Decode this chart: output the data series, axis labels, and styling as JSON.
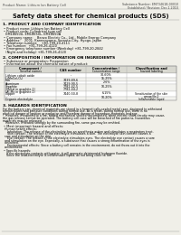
{
  "bg_color": "#f0efe8",
  "header_top_left": "Product Name: Lithium Ion Battery Cell",
  "header_top_right": "Substance Number: EM73461B-00010\nEstablished / Revision: Dec.1.2010",
  "main_title": "Safety data sheet for chemical products (SDS)",
  "section1_title": "1. PRODUCT AND COMPANY IDENTIFICATION",
  "section1_lines": [
    "• Product name: Lithium Ion Battery Cell",
    "• Product code: Cylindrical type cell",
    "  EM18650U, EM18650L, EM18650A",
    "• Company name:    Benzo Electric Co., Ltd., Mobile Energy Company",
    "• Address:    2001, Kannonyama, Sumoto-City, Hyogo, Japan",
    "• Telephone number:    +81-799-20-4111",
    "• Fax number:  +81-799-26-4120",
    "• Emergency telephone number (Weekday) +81-799-20-2842",
    "  (Night and holiday) +81-799-26-4120"
  ],
  "section2_title": "2. COMPOSITION / INFORMATION ON INGREDIENTS",
  "section2_intro": "• Substance or preparation: Preparation",
  "section2_sub": "• Information about the chemical nature of product:",
  "table_rows": [
    [
      "Lithium cobalt oxide\n(LiMnCo)₃O₂)",
      "-",
      "30-60%",
      ""
    ],
    [
      "Iron",
      "7439-89-6",
      "15-25%",
      ""
    ],
    [
      "Aluminum",
      "7429-90-5",
      "2-6%",
      ""
    ],
    [
      "Graphite\n(Metal in graphite-1)\n(Al-Mo in graphite-1)",
      "7782-42-5\n7782-44-2",
      "10-25%",
      ""
    ],
    [
      "Copper",
      "7440-50-8",
      "6-15%",
      "Sensitization of the skin\ngroup No.2"
    ],
    [
      "Organic electrolyte",
      "-",
      "10-20%",
      "Inflammable liquid"
    ]
  ],
  "section3_title": "3. HAZARDS IDENTIFICATION",
  "section3_lines": [
    "For the battery can, chemical materials are stored in a hermetically-sealed metal case, designed to withstand",
    "temperatures and pressure conditions during normal use. As a result, during normal use, there is no",
    "physical danger of ignition or explosion and therefore danger of hazardous materials leakage.",
    "   However, if exposed to a fire, added mechanical shocks, decomposed, when electric short-circuity may cause,",
    "the gas release cannot be operated. The battery cell case will be breached of fire patterns, hazardous",
    "materials may be released.",
    "   Moreover, if heated strongly by the surrounding fire, some gas may be emitted."
  ],
  "section3_sub1": "• Most important hazard and effects:",
  "section3_human_lines": [
    "Human health effects:",
    "   Inhalation: The release of the electrolyte has an anesthesia action and stimulates a respiratory tract.",
    "   Skin contact: The release of the electrolyte stimulates a skin. The electrolyte skin contact causes a",
    "sore and stimulation on the skin.",
    "   Eye contact: The release of the electrolyte stimulates eyes. The electrolyte eye contact causes a sore",
    "and stimulation on the eye. Especially, a substance that causes a strong inflammation of the eyes is",
    "contained.",
    "   Environmental effects: Since a battery cell remains in the environment, do not throw out it into the",
    "environment."
  ],
  "section3_specific_lines": [
    "• Specific hazards:",
    "   If the electrolyte contacts with water, it will generate detrimental hydrogen fluoride.",
    "   Since the lead-electrolyte is inflammable liquid, do not bring close to fire."
  ]
}
